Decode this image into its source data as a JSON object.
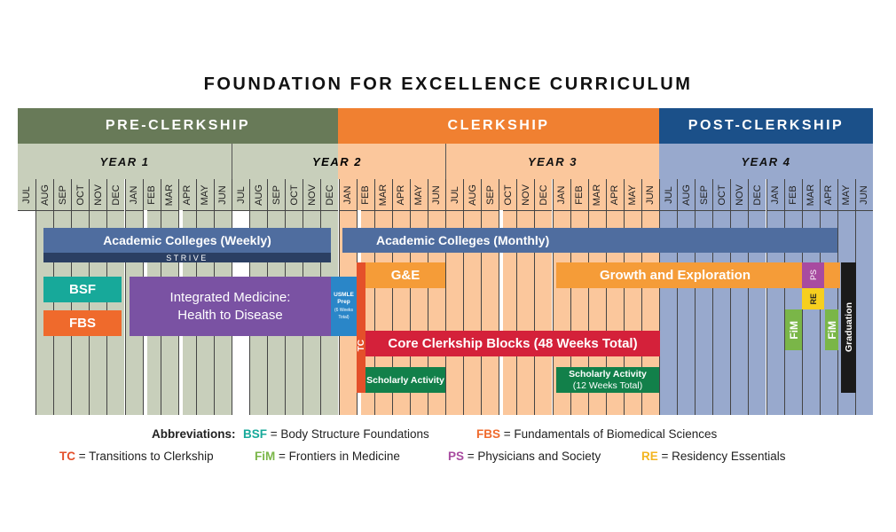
{
  "title": "FOUNDATION FOR EXCELLENCE CURRICULUM",
  "phases": [
    {
      "label": "PRE-CLERKSHIP",
      "color": "#687a58"
    },
    {
      "label": "CLERKSHIP",
      "color": "#f08031"
    },
    {
      "label": "POST-CLERKSHIP",
      "color": "#1b5089"
    }
  ],
  "years": [
    "YEAR 1",
    "YEAR 2",
    "YEAR 3",
    "YEAR 4"
  ],
  "months": [
    "JUL",
    "AUG",
    "SEP",
    "OCT",
    "NOV",
    "DEC",
    "JAN",
    "FEB",
    "MAR",
    "APR",
    "MAY",
    "JUN",
    "JUL",
    "AUG",
    "SEP",
    "OCT",
    "NOV",
    "DEC",
    "JAN",
    "FEB",
    "MAR",
    "APR",
    "MAY",
    "JUN",
    "JUL",
    "AUG",
    "SEP",
    "OCT",
    "NOV",
    "DEC",
    "JAN",
    "FEB",
    "MAR",
    "APR",
    "MAY",
    "JUN",
    "JUL",
    "AUG",
    "SEP",
    "OCT",
    "NOV",
    "DEC",
    "JAN",
    "FEB",
    "MAR",
    "APR",
    "MAY",
    "JUN"
  ],
  "blocks": {
    "ac_weekly": "Academic Colleges (Weekly)",
    "strive": "STRIVE",
    "ac_monthly": "Academic Colleges (Monthly)",
    "bsf": "BSF",
    "fbs": "FBS",
    "im": "Integrated Medicine: Health to Disease",
    "usmle_1": "USMLE Prep",
    "usmle_2": "(6 Weeks Total)",
    "tc": "TC",
    "ge": "G&E",
    "core": "Core Clerkship Blocks (48 Weeks Total)",
    "sa1": "Scholarly Activity",
    "sa2_1": "Scholarly Activity",
    "sa2_2": "(12 Weeks Total)",
    "growth": "Growth and Exploration",
    "ps": "PS",
    "re": "RE",
    "fim1": "FiM",
    "fim2": "FiM",
    "grad": "Graduation"
  },
  "legend": {
    "heading": "Abbreviations:",
    "items": [
      {
        "abbr": "BSF",
        "text": " = Body Structure Foundations",
        "color": "#17a99a"
      },
      {
        "abbr": "FBS",
        "text": " = Fundamentals of Biomedical Sciences",
        "color": "#ef6a2c"
      },
      {
        "abbr": "TC",
        "text": " = Transitions to Clerkship",
        "color": "#e4502a"
      },
      {
        "abbr": "FiM",
        "text": " = Frontiers in Medicine",
        "color": "#7ab648"
      },
      {
        "abbr": "PS",
        "text": " = Physicians and Society",
        "color": "#a84ba0"
      },
      {
        "abbr": "RE",
        "text": " = Residency Essentials",
        "color": "#f3b51f"
      }
    ]
  }
}
